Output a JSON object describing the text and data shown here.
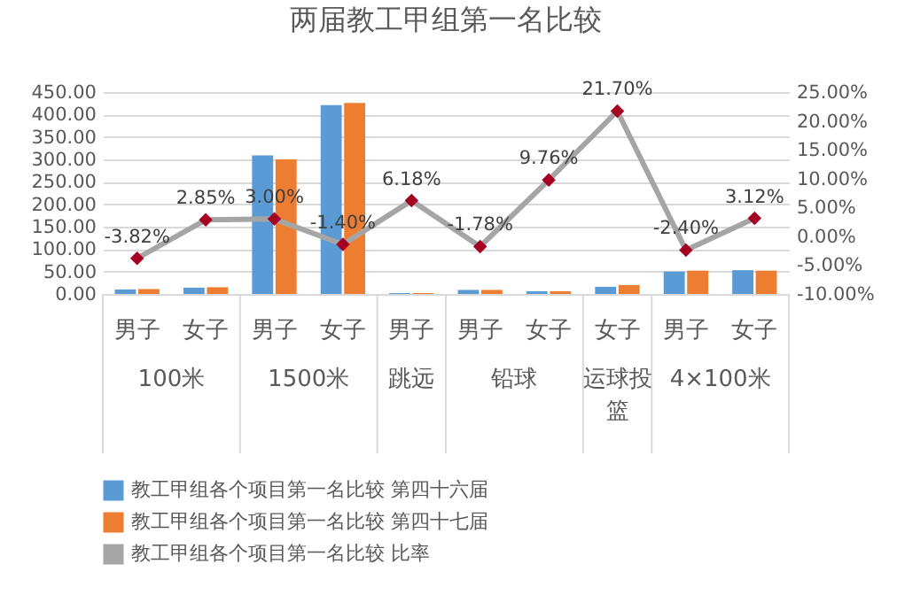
{
  "chart_data": {
    "type": "bar",
    "title": "两届教工甲组第一名比较",
    "categories": [
      "男子",
      "女子",
      "男子",
      "女子",
      "男子",
      "男子",
      "女子",
      "女子",
      "男子",
      "女子"
    ],
    "annotations": [
      "100米",
      "1500米",
      "跳远",
      "铅球",
      "运球投篮",
      "4×100米"
    ],
    "series": [
      {
        "name": "教工甲组各个项目第一名比较 第四十六届",
        "color": "#5b9bd5",
        "values": [
          10,
          14,
          309,
          421,
          2,
          9,
          6,
          16,
          50,
          53
        ]
      },
      {
        "name": "教工甲组各个项目第一名比较 第四十七届",
        "color": "#ed7d31",
        "values": [
          11,
          15,
          300,
          426,
          2,
          9,
          6,
          20,
          52,
          52
        ]
      },
      {
        "name": "教工甲组各个项目第一名比较 比率",
        "type": "line",
        "axis": "y2",
        "color": "#a5a5a5",
        "colors": [
          "#a50021",
          "#a50021",
          "#a50021",
          "#a50021",
          "#a50021",
          "#a50021",
          "#a50021",
          "#a50021",
          "#a50021",
          "#a50021"
        ],
        "marker": "diamond",
        "values": [
          -3.82,
          2.85,
          3.0,
          -1.4,
          6.18,
          -1.78,
          9.76,
          21.7,
          -2.4,
          3.12
        ],
        "value_labels": [
          "-3.82%",
          "2.85%",
          "3.00%",
          "-1.40%",
          "6.18%",
          "-1.78%",
          "9.76%",
          "21.70%",
          "-2.40%",
          "3.12%"
        ]
      }
    ],
    "ylim": [
      0,
      450
    ],
    "yticks": [
      {
        "value": 0,
        "label": "0.00"
      },
      {
        "value": 50,
        "label": "50.00"
      },
      {
        "value": 100,
        "label": "100.00"
      },
      {
        "value": 150,
        "label": "150.00"
      },
      {
        "value": 200,
        "label": "200.00"
      },
      {
        "value": 250,
        "label": "250.00"
      },
      {
        "value": 300,
        "label": "300.00"
      },
      {
        "value": 350,
        "label": "350.00"
      },
      {
        "value": 400,
        "label": "400.00"
      },
      {
        "value": 450,
        "label": "450.00"
      }
    ],
    "y2lim": [
      -10,
      25
    ],
    "y2ticks": [
      {
        "value": -10,
        "label": "-10.00%"
      },
      {
        "value": -5,
        "label": "-5.00%"
      },
      {
        "value": 0,
        "label": "0.00%"
      },
      {
        "value": 5,
        "label": "5.00%"
      },
      {
        "value": 10,
        "label": "10.00%"
      },
      {
        "value": 15,
        "label": "15.00%"
      },
      {
        "value": 20,
        "label": "20.00%"
      },
      {
        "value": 25,
        "label": "25.00%"
      }
    ],
    "grid": "y",
    "legend": "bottom"
  }
}
